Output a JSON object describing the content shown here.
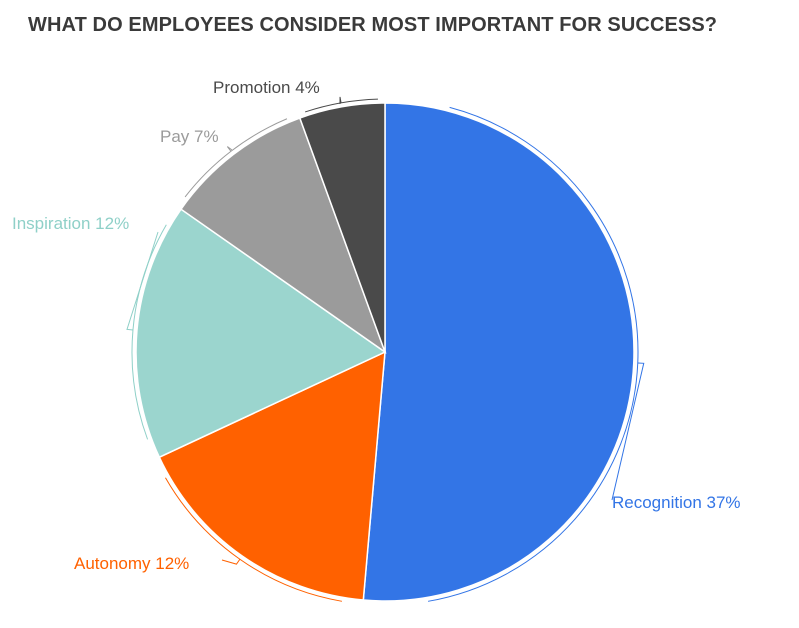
{
  "chart_data": {
    "type": "pie",
    "title": "WHAT DO EMPLOYEES CONSIDER MOST IMPORTANT FOR SUCCESS?",
    "slices": [
      {
        "label": "Recognition 37%",
        "name": "Recognition",
        "value": 37,
        "color": "#3375e6",
        "label_color": "#3375e6"
      },
      {
        "label": "Autonomy 12%",
        "name": "Autonomy",
        "value": 12,
        "color": "#ff6100",
        "label_color": "#ff6100"
      },
      {
        "label": "Inspiration 12%",
        "name": "Inspiration",
        "value": 12,
        "color": "#9bd5ce",
        "label_color": "#8fd0c8"
      },
      {
        "label": "Pay 7%",
        "name": "Pay",
        "value": 7,
        "color": "#9b9b9b",
        "label_color": "#9b9b9b"
      },
      {
        "label": "Promotion 4%",
        "name": "Promotion",
        "value": 4,
        "color": "#4a4a4a",
        "label_color": "#4a4a4a"
      }
    ],
    "legend": "none"
  }
}
